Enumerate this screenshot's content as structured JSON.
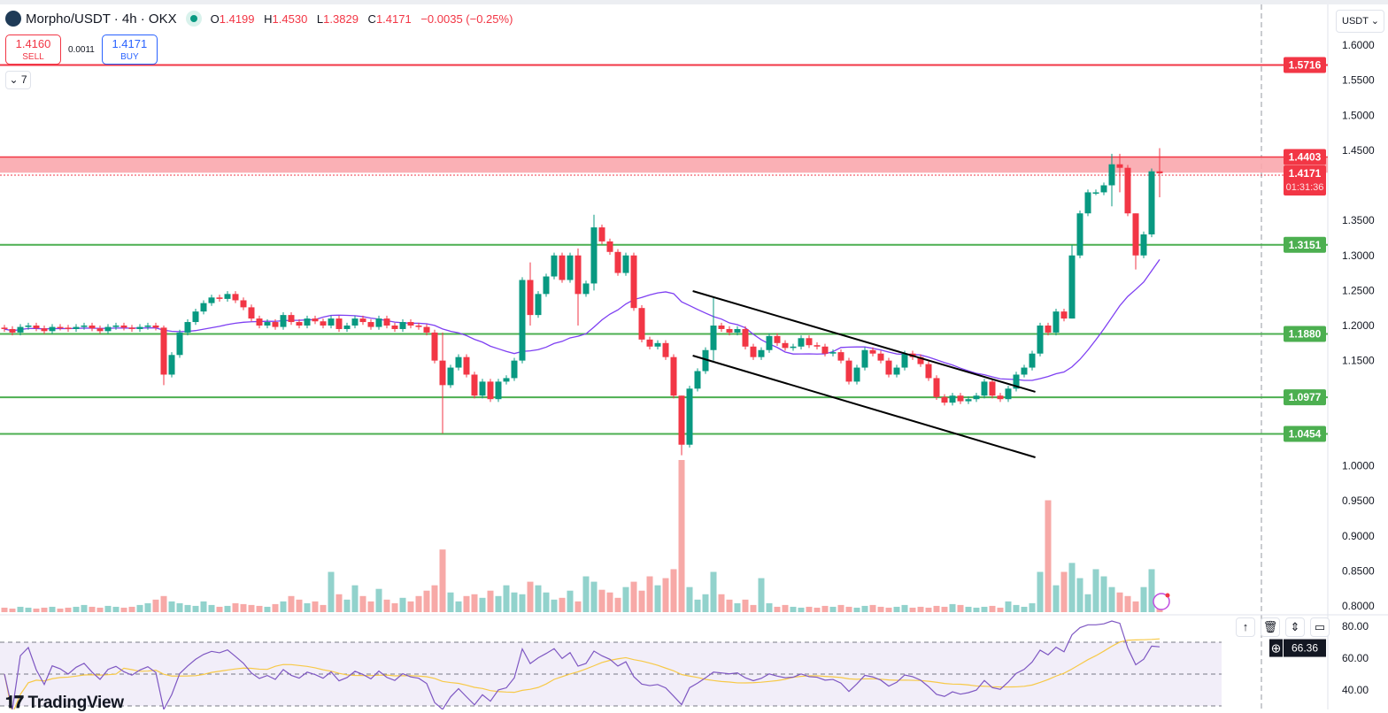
{
  "header": {
    "symbol": "Morpho/USDT · 4h · OKX",
    "o_label": "O",
    "o": "1.4199",
    "h_label": "H",
    "h": "1.4530",
    "l_label": "L",
    "l": "1.3829",
    "c_label": "C",
    "c": "1.4171",
    "change": "−0.0035 (−0.25%)"
  },
  "trade": {
    "sell_price": "1.4160",
    "sell_label": "SELL",
    "spread": "0.0011",
    "buy_price": "1.4171",
    "buy_label": "BUY"
  },
  "indicators_toggle": {
    "count": "7"
  },
  "currency_select": "USDT",
  "price_labels": {
    "resistance_top": "1.5716",
    "zone": "1.4403",
    "last": "1.4171",
    "countdown": "01:31:36",
    "s1": "1.3151",
    "s2": "1.1880",
    "s3": "1.0977",
    "s4": "1.0454"
  },
  "rsi_value": "66.36",
  "rsi_ticks": [
    "80.00",
    "60.00",
    "40.00"
  ],
  "pane_buttons": [
    "↑",
    "🗑",
    "⇕",
    "▭"
  ],
  "brand": "TradingView",
  "colors": {
    "up": "#089981",
    "down": "#f23645",
    "ma": "#7e3ff2",
    "rsi": "#7e57c2",
    "rsi_ma": "#f7c948",
    "support": "#4caf50",
    "resistance": "#f23645",
    "zone": "#f9a7ad"
  },
  "chart_data": {
    "type": "candlestick",
    "ylim": [
      0.8,
      1.6
    ],
    "y_ticks": [
      "1.6000",
      "1.5500",
      "1.5000",
      "1.4500",
      "1.3500",
      "1.3000",
      "1.2500",
      "1.2000",
      "1.1500",
      "1.0000",
      "0.9500",
      "0.9000",
      "0.8500",
      "0.8000"
    ],
    "y_tick_values": [
      1.6,
      1.55,
      1.5,
      1.45,
      1.35,
      1.3,
      1.25,
      1.2,
      1.15,
      1.0,
      0.95,
      0.9,
      0.85,
      0.8
    ],
    "first_open": 1.197,
    "closes": [
      1.195,
      1.19,
      1.198,
      1.2,
      1.196,
      1.192,
      1.198,
      1.197,
      1.195,
      1.198,
      1.2,
      1.196,
      1.192,
      1.198,
      1.2,
      1.197,
      1.195,
      1.198,
      1.2,
      1.197,
      1.13,
      1.158,
      1.19,
      1.205,
      1.22,
      1.232,
      1.24,
      1.238,
      1.245,
      1.236,
      1.226,
      1.21,
      1.2,
      1.205,
      1.198,
      1.215,
      1.205,
      1.2,
      1.21,
      1.206,
      1.2,
      1.21,
      1.195,
      1.2,
      1.21,
      1.205,
      1.198,
      1.21,
      1.2,
      1.195,
      1.205,
      1.2,
      1.198,
      1.19,
      1.15,
      1.115,
      1.14,
      1.155,
      1.13,
      1.1,
      1.12,
      1.095,
      1.12,
      1.125,
      1.15,
      1.265,
      1.215,
      1.245,
      1.27,
      1.3,
      1.265,
      1.3,
      1.245,
      1.26,
      1.34,
      1.32,
      1.305,
      1.275,
      1.3,
      1.225,
      1.18,
      1.17,
      1.175,
      1.155,
      1.1,
      1.03,
      1.11,
      1.135,
      1.165,
      1.2,
      1.195,
      1.19,
      1.195,
      1.17,
      1.155,
      1.165,
      1.185,
      1.175,
      1.168,
      1.17,
      1.182,
      1.172,
      1.17,
      1.16,
      1.162,
      1.15,
      1.12,
      1.14,
      1.165,
      1.16,
      1.15,
      1.13,
      1.14,
      1.16,
      1.155,
      1.145,
      1.125,
      1.098,
      1.09,
      1.1,
      1.092,
      1.095,
      1.1,
      1.12,
      1.1,
      1.095,
      1.11,
      1.13,
      1.14,
      1.16,
      1.2,
      1.19,
      1.22,
      1.21,
      1.3,
      1.36,
      1.39,
      1.39,
      1.4,
      1.43,
      1.425,
      1.36,
      1.3,
      1.33,
      1.42,
      1.4171
    ],
    "wicks": [
      [
        20,
        1.2,
        1.115
      ],
      [
        55,
        1.19,
        1.046
      ],
      [
        66,
        1.29,
        1.2
      ],
      [
        72,
        1.31,
        1.2
      ],
      [
        74,
        1.358,
        1.25
      ],
      [
        85,
        1.1,
        1.015
      ],
      [
        89,
        1.24,
        1.15
      ],
      [
        134,
        1.315,
        1.21
      ],
      [
        139,
        1.445,
        1.37
      ],
      [
        140,
        1.445,
        1.39
      ],
      [
        142,
        1.36,
        1.28
      ],
      [
        145,
        1.453,
        1.383
      ]
    ],
    "volumes": [
      5,
      4,
      6,
      5,
      4,
      5,
      6,
      4,
      5,
      6,
      8,
      6,
      5,
      7,
      6,
      5,
      6,
      8,
      10,
      14,
      18,
      12,
      10,
      8,
      7,
      12,
      8,
      6,
      7,
      10,
      9,
      8,
      7,
      6,
      9,
      12,
      18,
      14,
      10,
      12,
      8,
      45,
      20,
      14,
      30,
      18,
      12,
      26,
      14,
      10,
      16,
      12,
      18,
      24,
      30,
      70,
      22,
      12,
      18,
      20,
      16,
      24,
      18,
      30,
      22,
      20,
      34,
      30,
      22,
      14,
      16,
      24,
      12,
      40,
      34,
      25,
      22,
      16,
      28,
      34,
      24,
      40,
      30,
      38,
      48,
      170,
      28,
      14,
      20,
      45,
      20,
      14,
      10,
      14,
      8,
      38,
      10,
      6,
      8,
      6,
      5,
      6,
      5,
      7,
      6,
      8,
      6,
      5,
      7,
      8,
      6,
      5,
      6,
      8,
      5,
      6,
      5,
      7,
      6,
      9,
      8,
      6,
      5,
      6,
      7,
      5,
      12,
      8,
      6,
      10,
      45,
      125,
      30,
      45,
      55,
      38,
      20,
      48,
      40,
      28,
      22,
      18,
      12,
      28,
      48,
      12
    ]
  },
  "levels": {
    "resistance": [
      1.5716
    ],
    "zone": [
      1.418,
      1.4403
    ],
    "last_price": 1.4171,
    "supports": [
      1.3151,
      1.188,
      1.0977,
      1.0454
    ]
  },
  "trendlines": [
    {
      "from": [
        86.4,
        1.2492
      ],
      "to": [
        129.4,
        1.1054
      ]
    },
    {
      "from": [
        86.4,
        1.1571
      ],
      "to": [
        129.4,
        1.012
      ]
    }
  ]
}
